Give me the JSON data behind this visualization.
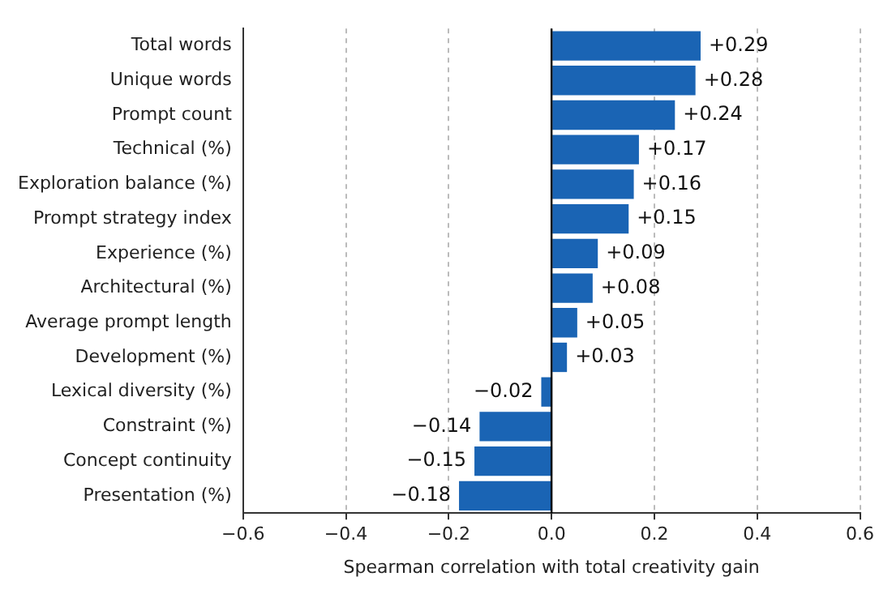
{
  "chart_data": {
    "type": "bar",
    "orientation": "horizontal",
    "xlabel": "Spearman correlation with total creativity gain",
    "categories": [
      "Total words",
      "Unique words",
      "Prompt count",
      "Technical (%)",
      "Exploration balance (%)",
      "Prompt strategy index",
      "Experience (%)",
      "Architectural (%)",
      "Average prompt length",
      "Development (%)",
      "Lexical diversity (%)",
      "Constraint (%)",
      "Concept continuity",
      "Presentation (%)"
    ],
    "values": [
      0.29,
      0.28,
      0.24,
      0.17,
      0.16,
      0.15,
      0.09,
      0.08,
      0.05,
      0.03,
      -0.02,
      -0.14,
      -0.15,
      -0.18
    ],
    "value_labels": [
      "+0.29",
      "+0.28",
      "+0.24",
      "+0.17",
      "+0.16",
      "+0.15",
      "+0.09",
      "+0.08",
      "+0.05",
      "+0.03",
      "−0.02",
      "−0.14",
      "−0.15",
      "−0.18"
    ],
    "color": "#1a64b4",
    "xlim": [
      -0.6,
      0.6
    ],
    "xticks": [
      {
        "value": -0.6,
        "label": "−0.6"
      },
      {
        "value": -0.4,
        "label": "−0.4"
      },
      {
        "value": -0.2,
        "label": "−0.2"
      },
      {
        "value": 0,
        "label": "0.0"
      },
      {
        "value": 0.2,
        "label": "0.2"
      },
      {
        "value": 0.4,
        "label": "0.4"
      },
      {
        "value": 0.6,
        "label": "0.6"
      }
    ],
    "grid": "x",
    "ref_lines": [
      {
        "axis": "x",
        "value": 0,
        "color": "#000000"
      }
    ]
  }
}
